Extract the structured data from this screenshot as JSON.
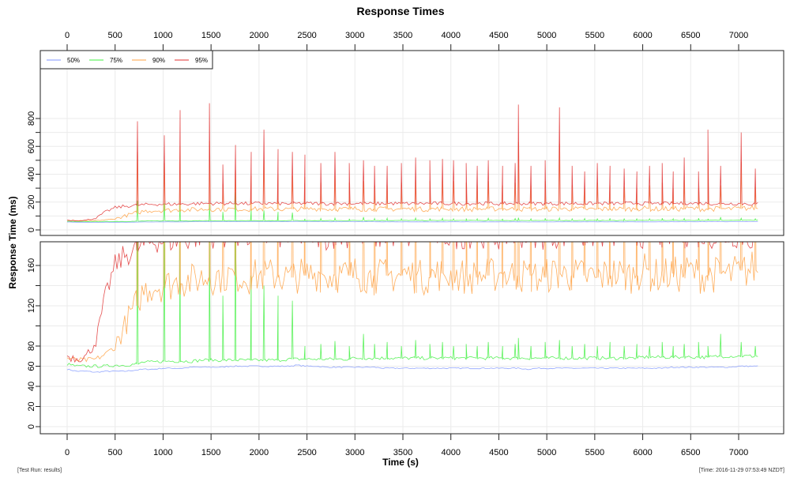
{
  "chart_data": {
    "type": "line",
    "title": "Response Times",
    "xlabel": "Time (s)",
    "ylabel": "Response Time (ms)",
    "xlim": [
      0,
      7200
    ],
    "x_ticks": [
      0,
      500,
      1000,
      1500,
      2000,
      2500,
      3000,
      3500,
      4000,
      4500,
      5000,
      5500,
      6000,
      6500,
      7000
    ],
    "panels": [
      {
        "name": "full",
        "ylim": [
          0,
          880
        ],
        "y_ticks": [
          0,
          200,
          400,
          600,
          800
        ],
        "y_minor_ticks": [
          100,
          300,
          500,
          700
        ]
      },
      {
        "name": "zoomed",
        "ylim": [
          -6,
          182
        ],
        "y_ticks": [
          0,
          20,
          40,
          60,
          80,
          120,
          160
        ],
        "y_minor_ticks": [
          100,
          140
        ]
      }
    ],
    "grid": true,
    "legend_position": "top-left",
    "x_step": 100,
    "series": [
      {
        "name": "50%",
        "color": "#7f96ff",
        "values": [
          57,
          55,
          55,
          54,
          55,
          55,
          55,
          56,
          57,
          57,
          58,
          58,
          58,
          59,
          59,
          59,
          59,
          60,
          60,
          60,
          60,
          60,
          60,
          60,
          61,
          60,
          60,
          59,
          59,
          59,
          59,
          59,
          59,
          58,
          58,
          58,
          58,
          58,
          58,
          58,
          58,
          58,
          58,
          58,
          58,
          58,
          58,
          58,
          57,
          58,
          58,
          58,
          58,
          58,
          58,
          58,
          58,
          58,
          58,
          58,
          58,
          58,
          58,
          59,
          59,
          59,
          59,
          59,
          59,
          59,
          60,
          60,
          60
        ]
      },
      {
        "name": "75%",
        "color": "#3ff03f",
        "values": [
          62,
          60,
          60,
          60,
          60,
          61,
          61,
          62,
          64,
          64,
          65,
          65,
          65,
          65,
          66,
          66,
          66,
          66,
          66,
          66,
          66,
          66,
          66,
          67,
          67,
          67,
          67,
          67,
          67,
          67,
          68,
          68,
          68,
          68,
          68,
          68,
          68,
          68,
          68,
          68,
          68,
          68,
          68,
          68,
          68,
          68,
          68,
          68,
          68,
          68,
          68,
          68,
          68,
          68,
          68,
          68,
          68,
          68,
          68,
          68,
          69,
          69,
          69,
          69,
          69,
          69,
          69,
          69,
          70,
          70,
          70,
          70,
          70
        ]
      },
      {
        "name": "90%",
        "color": "#ffa040",
        "values": [
          68,
          66,
          66,
          67,
          72,
          80,
          100,
          120,
          135,
          140,
          140,
          142,
          145,
          145,
          148,
          148,
          150,
          150,
          150,
          148,
          150,
          150,
          150,
          148,
          150,
          150,
          152,
          150,
          150,
          150,
          152,
          150,
          148,
          150,
          150,
          152,
          150,
          148,
          150,
          152,
          150,
          150,
          148,
          150,
          150,
          152,
          150,
          150,
          150,
          148,
          150,
          152,
          150,
          150,
          150,
          148,
          150,
          152,
          150,
          150,
          155,
          150,
          150,
          152,
          150,
          155,
          150,
          150,
          152,
          150,
          155,
          155,
          160
        ]
      },
      {
        "name": "95%",
        "color": "#e03030",
        "values": [
          70,
          68,
          70,
          85,
          130,
          160,
          170,
          175,
          180,
          185,
          185,
          185,
          185,
          188,
          190,
          190,
          190,
          190,
          190,
          188,
          190,
          190,
          190,
          188,
          190,
          190,
          190,
          188,
          190,
          190,
          190,
          190,
          188,
          190,
          190,
          190,
          188,
          190,
          190,
          190,
          190,
          188,
          190,
          190,
          190,
          188,
          190,
          190,
          190,
          190,
          188,
          190,
          190,
          190,
          188,
          190,
          190,
          190,
          190,
          190,
          190,
          190,
          188,
          190,
          190,
          190,
          190,
          190,
          188,
          190,
          190,
          188,
          185
        ]
      }
    ],
    "spikes": [
      {
        "t": 733,
        "p95": 780,
        "p90": 560,
        "p75": 210
      },
      {
        "t": 1013,
        "p95": 680,
        "p90": 480,
        "p75": 190
      },
      {
        "t": 1178,
        "p95": 860,
        "p90": 600,
        "p75": 190
      },
      {
        "t": 1483,
        "p95": 910,
        "p90": 640,
        "p75": 190
      },
      {
        "t": 1623,
        "p95": 470,
        "p90": 330,
        "p75": 130
      },
      {
        "t": 1755,
        "p95": 610,
        "p90": 430,
        "p75": 270
      },
      {
        "t": 1919,
        "p95": 560,
        "p90": 390,
        "p75": 150
      },
      {
        "t": 2051,
        "p95": 720,
        "p90": 500,
        "p75": 140
      },
      {
        "t": 2199,
        "p95": 580,
        "p90": 400,
        "p75": 130
      },
      {
        "t": 2348,
        "p95": 560,
        "p90": 390,
        "p75": 125
      },
      {
        "t": 2479,
        "p95": 540,
        "p90": 380,
        "p75": 80
      },
      {
        "t": 2644,
        "p95": 480,
        "p90": 340,
        "p75": 82
      },
      {
        "t": 2792,
        "p95": 560,
        "p90": 390,
        "p75": 85
      },
      {
        "t": 2941,
        "p95": 480,
        "p90": 340,
        "p75": 80
      },
      {
        "t": 3089,
        "p95": 500,
        "p90": 350,
        "p75": 92
      },
      {
        "t": 3204,
        "p95": 460,
        "p90": 320,
        "p75": 82
      },
      {
        "t": 3336,
        "p95": 460,
        "p90": 320,
        "p75": 84
      },
      {
        "t": 3484,
        "p95": 480,
        "p90": 340,
        "p75": 80
      },
      {
        "t": 3633,
        "p95": 520,
        "p90": 360,
        "p75": 86
      },
      {
        "t": 3781,
        "p95": 500,
        "p90": 350,
        "p75": 82
      },
      {
        "t": 3913,
        "p95": 510,
        "p90": 360,
        "p75": 84
      },
      {
        "t": 4028,
        "p95": 500,
        "p90": 350,
        "p75": 80
      },
      {
        "t": 4160,
        "p95": 480,
        "p90": 340,
        "p75": 82
      },
      {
        "t": 4275,
        "p95": 460,
        "p90": 320,
        "p75": 80
      },
      {
        "t": 4390,
        "p95": 500,
        "p90": 350,
        "p75": 84
      },
      {
        "t": 4539,
        "p95": 460,
        "p90": 320,
        "p75": 80
      },
      {
        "t": 4670,
        "p95": 480,
        "p90": 340,
        "p75": 82
      },
      {
        "t": 4704,
        "p95": 900,
        "p90": 630,
        "p75": 88
      },
      {
        "t": 4835,
        "p95": 460,
        "p90": 320,
        "p75": 80
      },
      {
        "t": 4983,
        "p95": 500,
        "p90": 350,
        "p75": 84
      },
      {
        "t": 5132,
        "p95": 880,
        "p90": 620,
        "p75": 86
      },
      {
        "t": 5264,
        "p95": 460,
        "p90": 320,
        "p75": 80
      },
      {
        "t": 5395,
        "p95": 420,
        "p90": 300,
        "p75": 82
      },
      {
        "t": 5527,
        "p95": 480,
        "p90": 340,
        "p75": 80
      },
      {
        "t": 5659,
        "p95": 460,
        "p90": 320,
        "p75": 84
      },
      {
        "t": 5807,
        "p95": 440,
        "p90": 310,
        "p75": 80
      },
      {
        "t": 5939,
        "p95": 420,
        "p90": 300,
        "p75": 82
      },
      {
        "t": 6071,
        "p95": 460,
        "p90": 320,
        "p75": 80
      },
      {
        "t": 6203,
        "p95": 480,
        "p90": 340,
        "p75": 84
      },
      {
        "t": 6318,
        "p95": 420,
        "p90": 300,
        "p75": 80
      },
      {
        "t": 6433,
        "p95": 520,
        "p90": 360,
        "p75": 82
      },
      {
        "t": 6582,
        "p95": 420,
        "p90": 300,
        "p75": 84
      },
      {
        "t": 6680,
        "p95": 720,
        "p90": 500,
        "p75": 80
      },
      {
        "t": 6812,
        "p95": 460,
        "p90": 320,
        "p75": 92
      },
      {
        "t": 7026,
        "p95": 700,
        "p90": 490,
        "p75": 84
      },
      {
        "t": 7174,
        "p95": 440,
        "p90": 310,
        "p75": 80
      }
    ]
  },
  "footer": {
    "left": "[Test Run: results]",
    "right": "[Time: 2016-11-29 07:53:49 NZDT]"
  }
}
